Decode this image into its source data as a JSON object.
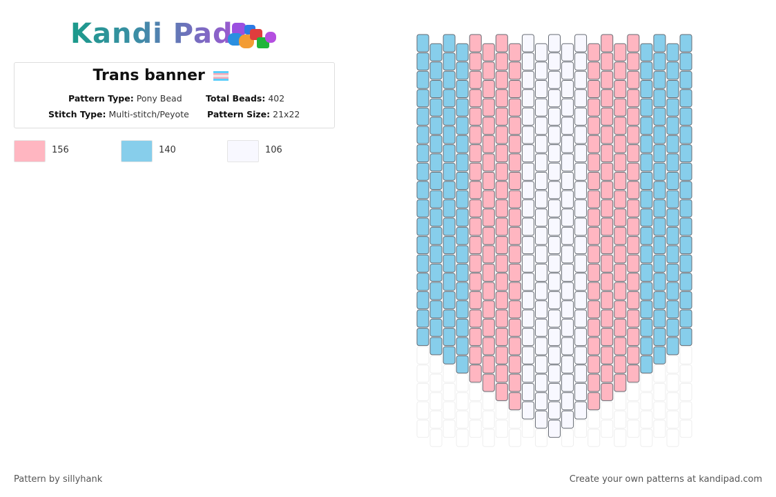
{
  "header": {
    "logo": "Kandi Pad"
  },
  "pattern": {
    "title": "Trans banner",
    "details": [
      {
        "label": "Pattern Type:",
        "value": "Pony Bead"
      },
      {
        "label": "Total Beads:",
        "value": 402
      },
      {
        "label": "Stitch Type:",
        "value": "Multi-stitch/Peyote"
      },
      {
        "label": "Pattern Size:",
        "value": "21x22"
      }
    ]
  },
  "palette": [
    {
      "color": "#ffb6c1",
      "count": 156
    },
    {
      "color": "#87ceeb",
      "count": 140
    },
    {
      "color": "#f8f8ff",
      "count": 106
    }
  ],
  "footer": {
    "credit": "Pattern by sillyhank",
    "promo": "Create your own patterns at kandipad.com"
  }
}
